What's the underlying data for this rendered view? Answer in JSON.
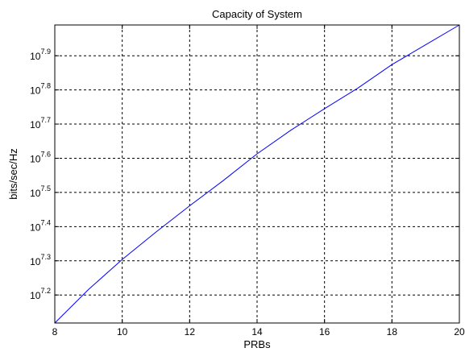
{
  "chart_data": {
    "type": "line",
    "title": "Capacity of System",
    "xlabel": "PRBs",
    "ylabel": "bits/sec/Hz",
    "xlim": [
      8,
      20
    ],
    "ylim_log10": [
      7.118,
      7.99
    ],
    "y_scale": "log10",
    "grid": true,
    "grid_style": "dashed",
    "x_ticks": [
      8,
      10,
      12,
      14,
      16,
      18,
      20
    ],
    "y_ticks_log10": [
      7.2,
      7.3,
      7.4,
      7.5,
      7.6,
      7.7,
      7.8,
      7.9
    ],
    "x_tick_labels": [
      "8",
      "10",
      "12",
      "14",
      "16",
      "18",
      "20"
    ],
    "y_tick_labels": [
      {
        "base": "10",
        "exp": "7.2"
      },
      {
        "base": "10",
        "exp": "7.3"
      },
      {
        "base": "10",
        "exp": "7.4"
      },
      {
        "base": "10",
        "exp": "7.5"
      },
      {
        "base": "10",
        "exp": "7.6"
      },
      {
        "base": "10",
        "exp": "7.7"
      },
      {
        "base": "10",
        "exp": "7.8"
      },
      {
        "base": "10",
        "exp": "7.9"
      }
    ],
    "series": [
      {
        "color": "#0000ff",
        "x": [
          8,
          9,
          10,
          11,
          12,
          13,
          14,
          15,
          16,
          17,
          18,
          19,
          20
        ],
        "y_log10": [
          7.118,
          7.216,
          7.304,
          7.384,
          7.461,
          7.535,
          7.613,
          7.682,
          7.745,
          7.806,
          7.874,
          7.932,
          7.99
        ]
      }
    ]
  }
}
